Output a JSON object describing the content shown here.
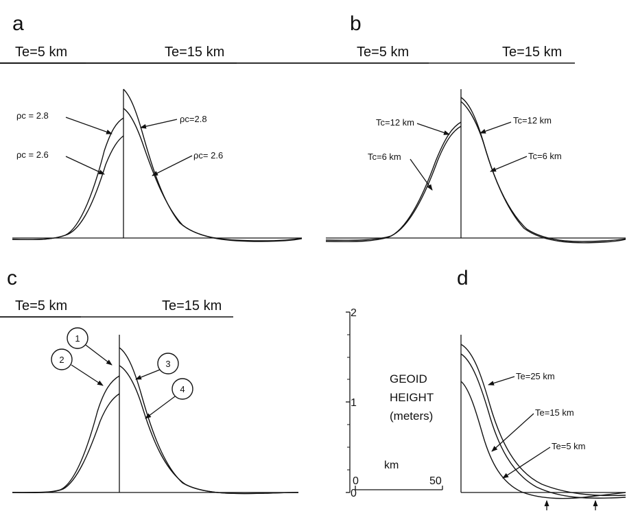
{
  "chart_data": [
    {
      "type": "line",
      "panel_label": "a",
      "headers": [
        "Te=5 km",
        "Te=15 km"
      ],
      "series": [
        {
          "name": "ρc = 2.8",
          "side": "Te=5 km"
        },
        {
          "name": "ρc = 2.6",
          "side": "Te=5 km"
        },
        {
          "name": "ρc=2.8",
          "side": "Te=15 km"
        },
        {
          "name": "ρc= 2.6",
          "side": "Te=15 km"
        }
      ]
    },
    {
      "type": "line",
      "panel_label": "b",
      "headers": [
        "Te=5 km",
        "Te=15 km"
      ],
      "series": [
        {
          "name": "Tc=12 km",
          "side": "Te=5 km"
        },
        {
          "name": "Tc=6 km",
          "side": "Te=5 km"
        },
        {
          "name": "Tc=12 km",
          "side": "Te=15 km"
        },
        {
          "name": "Tc=6 km",
          "side": "Te=15 km"
        }
      ]
    },
    {
      "type": "line",
      "panel_label": "c",
      "headers": [
        "Te=5 km",
        "Te=15 km"
      ],
      "series": [
        {
          "name": "1",
          "side": "Te=5 km"
        },
        {
          "name": "2",
          "side": "Te=5 km"
        },
        {
          "name": "3",
          "side": "Te=15 km"
        },
        {
          "name": "4",
          "side": "Te=15 km"
        }
      ]
    },
    {
      "type": "line",
      "panel_label": "d",
      "series": [
        {
          "name": "Te=25 km"
        },
        {
          "name": "Te=15 km"
        },
        {
          "name": "Te=5 km"
        }
      ]
    }
  ],
  "scale": {
    "ylabel_lines": [
      "GEOID",
      "HEIGHT",
      "(meters)"
    ],
    "y_ticks": [
      "0",
      "1",
      "2"
    ],
    "ylim": [
      0,
      2
    ],
    "x_label": "km",
    "x_ticks": [
      "0",
      "50"
    ]
  },
  "style": {
    "line_color": "#111111",
    "background": "#ffffff"
  }
}
